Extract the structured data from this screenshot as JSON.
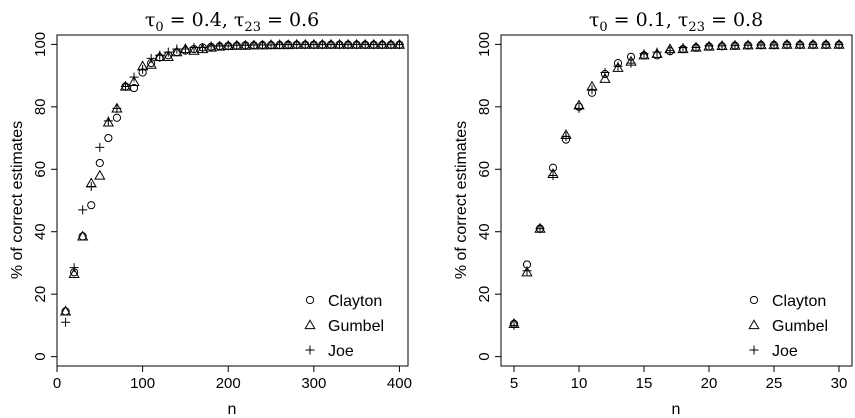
{
  "chart_data": [
    {
      "type": "scatter",
      "title_parts": {
        "tau": "τ",
        "sub0": "0",
        "eq1": " = 0.4, ",
        "sub23": "23",
        "eq2": " = 0.6"
      },
      "xlabel": "n",
      "ylabel": "% of correct estimates",
      "xlim": [
        0,
        410
      ],
      "ylim": [
        -3,
        103
      ],
      "xticks": [
        0,
        100,
        200,
        300,
        400
      ],
      "yticks": [
        0,
        20,
        40,
        60,
        80,
        100
      ],
      "legend_position": "bottom-right",
      "x": [
        10,
        20,
        30,
        40,
        50,
        60,
        70,
        80,
        90,
        100,
        110,
        120,
        130,
        140,
        150,
        160,
        170,
        180,
        190,
        200,
        210,
        220,
        230,
        240,
        250,
        260,
        270,
        280,
        290,
        300,
        310,
        320,
        330,
        340,
        350,
        360,
        370,
        380,
        390,
        400
      ],
      "series": [
        {
          "name": "Clayton",
          "marker": "circle",
          "values": [
            14.5,
            27.0,
            38.5,
            48.5,
            62.0,
            70.0,
            76.5,
            86.5,
            86.0,
            91.0,
            94.0,
            95.8,
            96.5,
            97.5,
            98.0,
            98.5,
            99.0,
            99.2,
            99.4,
            99.5,
            99.6,
            99.7,
            99.7,
            99.8,
            99.8,
            99.8,
            99.9,
            99.9,
            99.9,
            99.9,
            99.9,
            99.9,
            99.9,
            99.9,
            99.9,
            99.9,
            99.9,
            99.9,
            99.9,
            99.9
          ]
        },
        {
          "name": "Gumbel",
          "marker": "triangle",
          "values": [
            14.5,
            26.5,
            38.5,
            55.5,
            58.0,
            75.0,
            79.5,
            86.5,
            88.0,
            93.0,
            93.5,
            96.0,
            96.0,
            97.5,
            98.5,
            98.0,
            98.5,
            99.0,
            99.3,
            99.5,
            99.6,
            99.6,
            99.7,
            99.7,
            99.8,
            99.8,
            99.8,
            99.9,
            99.9,
            99.9,
            99.9,
            99.9,
            99.9,
            99.9,
            99.9,
            99.9,
            99.9,
            99.9,
            99.9,
            99.9
          ]
        },
        {
          "name": "Joe",
          "marker": "plus",
          "values": [
            11.0,
            28.5,
            47.0,
            54.5,
            67.0,
            75.5,
            79.5,
            86.5,
            89.5,
            92.0,
            95.5,
            96.5,
            97.5,
            98.5,
            98.5,
            99.0,
            99.0,
            99.5,
            99.5,
            99.5,
            99.7,
            99.7,
            99.8,
            99.8,
            99.8,
            99.9,
            99.9,
            99.9,
            99.9,
            99.9,
            99.9,
            99.9,
            99.9,
            99.9,
            99.9,
            99.9,
            99.9,
            99.9,
            99.9,
            99.9
          ]
        }
      ]
    },
    {
      "type": "scatter",
      "title_parts": {
        "tau": "τ",
        "sub0": "0",
        "eq1": " = 0.1, ",
        "sub23": "23",
        "eq2": " = 0.8"
      },
      "xlabel": "n",
      "ylabel": "% of correct estimates",
      "xlim": [
        4,
        31
      ],
      "ylim": [
        -3,
        103
      ],
      "xticks": [
        5,
        10,
        15,
        20,
        25,
        30
      ],
      "yticks": [
        0,
        20,
        40,
        60,
        80,
        100
      ],
      "legend_position": "bottom-right",
      "x": [
        5,
        6,
        7,
        8,
        9,
        10,
        11,
        12,
        13,
        14,
        15,
        16,
        17,
        18,
        19,
        20,
        21,
        22,
        23,
        24,
        25,
        26,
        27,
        28,
        29,
        30
      ],
      "series": [
        {
          "name": "Clayton",
          "marker": "circle",
          "values": [
            10.5,
            29.5,
            41.0,
            60.5,
            69.5,
            80.0,
            84.5,
            90.5,
            94.0,
            96.0,
            96.5,
            96.5,
            97.8,
            98.5,
            99.0,
            99.3,
            99.4,
            99.6,
            99.7,
            99.8,
            99.8,
            99.9,
            99.9,
            99.9,
            99.9,
            99.9
          ]
        },
        {
          "name": "Gumbel",
          "marker": "triangle",
          "values": [
            10.5,
            27.0,
            41.0,
            58.5,
            71.0,
            80.5,
            86.5,
            89.0,
            92.5,
            94.5,
            96.5,
            97.0,
            98.5,
            98.5,
            99.0,
            99.3,
            99.5,
            99.6,
            99.7,
            99.8,
            99.8,
            99.9,
            99.9,
            99.9,
            99.9,
            99.9
          ]
        },
        {
          "name": "Joe",
          "marker": "plus",
          "values": [
            10.0,
            27.5,
            41.0,
            58.0,
            70.5,
            79.5,
            85.5,
            91.0,
            93.0,
            94.0,
            97.0,
            97.5,
            98.0,
            99.0,
            99.0,
            99.5,
            99.5,
            99.6,
            99.7,
            99.8,
            99.8,
            99.9,
            99.9,
            99.9,
            99.9,
            99.9
          ]
        }
      ]
    }
  ]
}
